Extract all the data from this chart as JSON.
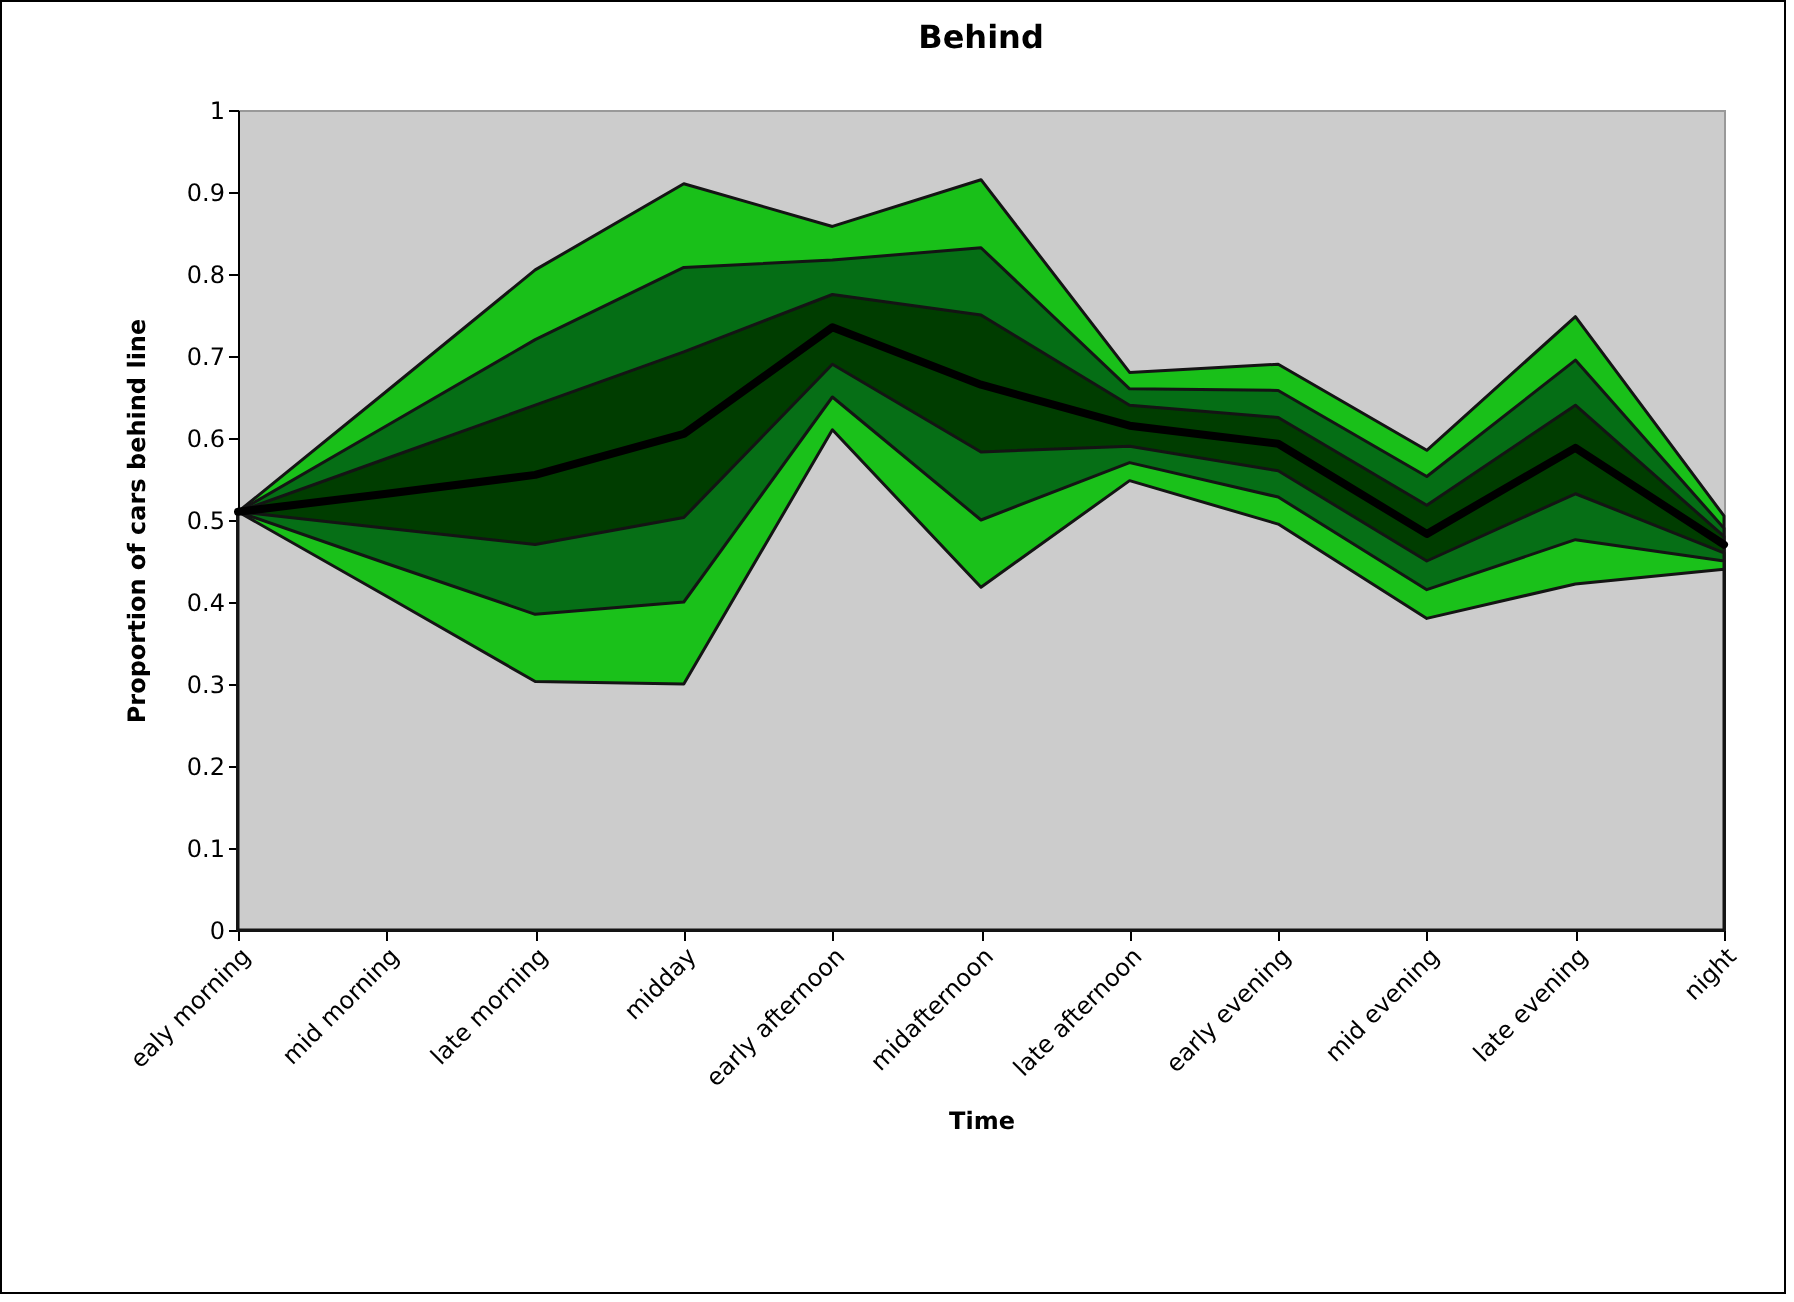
{
  "chart_data": {
    "type": "area",
    "title": "Behind",
    "xlabel": "Time",
    "ylabel": "Proportion of cars behind line",
    "categories": [
      "ealy morning",
      "mid morning",
      "late morning",
      "midday",
      "early afternoon",
      "midafternoon",
      "late afternoon",
      "early evening",
      "mid evening",
      "late evening",
      "night"
    ],
    "series": [
      {
        "color": "#19c019",
        "values": [
          0.51,
          0.657,
          0.805,
          0.91,
          0.858,
          0.915,
          0.68,
          0.69,
          0.585,
          0.748,
          0.505
        ]
      },
      {
        "color": "#056e15",
        "values": [
          0.51,
          0.615,
          0.72,
          0.808,
          0.817,
          0.832,
          0.66,
          0.658,
          0.553,
          0.695,
          0.49
        ]
      },
      {
        "color": "#003d00",
        "values": [
          0.51,
          0.575,
          0.64,
          0.705,
          0.775,
          0.75,
          0.64,
          0.625,
          0.518,
          0.64,
          0.48
        ]
      },
      {
        "color": "#066f16",
        "values": [
          0.51,
          0.49,
          0.47,
          0.503,
          0.69,
          0.583,
          0.59,
          0.56,
          0.45,
          0.532,
          0.46
        ]
      },
      {
        "color": "#1ac11a",
        "values": [
          0.51,
          0.447,
          0.385,
          0.4,
          0.65,
          0.5,
          0.57,
          0.528,
          0.415,
          0.476,
          0.45
        ]
      },
      {
        "color": "#cccccc",
        "values": [
          0.51,
          0.407,
          0.303,
          0.3,
          0.61,
          0.418,
          0.548,
          0.495,
          0.38,
          0.422,
          0.44
        ]
      },
      {
        "type": "line",
        "color": "#000000",
        "values": [
          0.51,
          0.532,
          0.555,
          0.605,
          0.735,
          0.665,
          0.615,
          0.593,
          0.483,
          0.588,
          0.47
        ]
      }
    ],
    "ylim": [
      0,
      1
    ],
    "yticks": [
      {
        "value": 0,
        "label": "0"
      },
      0.1,
      0.2,
      0.3,
      0.4,
      0.5,
      0.6,
      0.7,
      0.8,
      0.9,
      {
        "value": 1,
        "label": "1"
      }
    ],
    "tick_labels": "y"
  }
}
